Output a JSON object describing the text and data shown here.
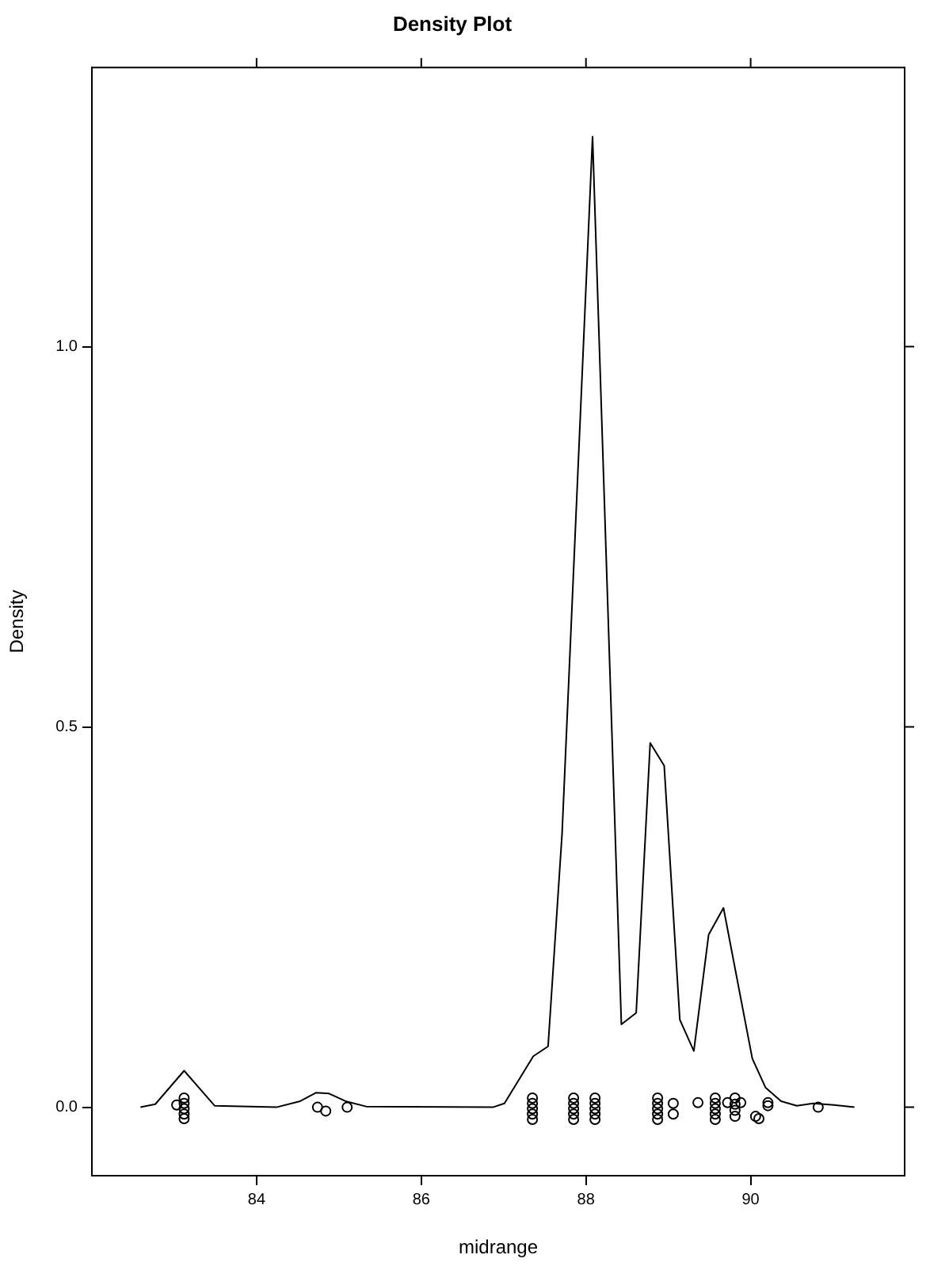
{
  "chart_data": {
    "type": "line",
    "title": "Density Plot",
    "xlabel": "midrange",
    "ylabel": "Density",
    "xlim": [
      82.0,
      91.87
    ],
    "ylim": [
      -0.09,
      1.367
    ],
    "xticks": [
      84,
      86,
      88,
      90
    ],
    "yticks": [
      {
        "value": 0,
        "label": "0.0"
      },
      {
        "value": 0.5,
        "label": "0.5"
      },
      {
        "value": 1,
        "label": "1.0"
      }
    ],
    "legend": false,
    "series": [
      {
        "type": "line",
        "color": "#000000",
        "marker": "none",
        "line_style": "solid",
        "x": [
          82.59,
          82.77,
          83.12,
          83.49,
          84.24,
          84.53,
          84.72,
          84.88,
          85.08,
          85.33,
          86.87,
          87.01,
          87.36,
          87.54,
          87.71,
          88.08,
          88.43,
          88.61,
          88.78,
          88.95,
          89.14,
          89.31,
          89.49,
          89.67,
          90.02,
          90.18,
          90.37,
          90.56,
          90.76,
          91.01,
          91.26
        ],
        "values": [
          0,
          0.004,
          0.048,
          0.002,
          0,
          0.008,
          0.019,
          0.018,
          0.008,
          0.001,
          0,
          0.005,
          0.067,
          0.08,
          0.36,
          1.276,
          0.109,
          0.124,
          0.479,
          0.449,
          0.115,
          0.074,
          0.227,
          0.262,
          0.064,
          0.026,
          0.008,
          0.002,
          0.005,
          0.003,
          0
        ]
      },
      {
        "type": "scatter",
        "color": "#000000",
        "marker": "circle",
        "x": [
          83.03,
          83.12,
          83.12,
          83.12,
          83.12,
          83.12,
          84.74,
          84.84,
          85.1,
          87.35,
          87.35,
          87.35,
          87.35,
          87.35,
          87.85,
          87.85,
          87.85,
          87.85,
          87.85,
          88.11,
          88.11,
          88.11,
          88.11,
          88.11,
          88.87,
          88.87,
          88.87,
          88.87,
          88.87,
          89.06,
          89.06,
          89.36,
          89.57,
          89.57,
          89.57,
          89.57,
          89.57,
          89.72,
          89.81,
          89.81,
          89.81,
          89.81,
          89.88,
          90.06,
          90.1,
          90.21,
          90.21,
          90.82
        ],
        "values": [
          0.003,
          0.012,
          0.005,
          -0.002,
          -0.009,
          -0.015,
          0,
          -0.005,
          0,
          0.012,
          0.005,
          -0.002,
          -0.009,
          -0.016,
          0.012,
          0.005,
          -0.002,
          -0.009,
          -0.016,
          0.012,
          0.005,
          -0.002,
          -0.009,
          -0.016,
          0.012,
          0.005,
          -0.002,
          -0.009,
          -0.016,
          0.005,
          -0.009,
          0.006,
          0.012,
          0.005,
          -0.002,
          -0.009,
          -0.016,
          0.006,
          0.012,
          0.004,
          -0.004,
          -0.012,
          0.006,
          -0.012,
          -0.015,
          0.006,
          0.002,
          0
        ]
      }
    ]
  }
}
